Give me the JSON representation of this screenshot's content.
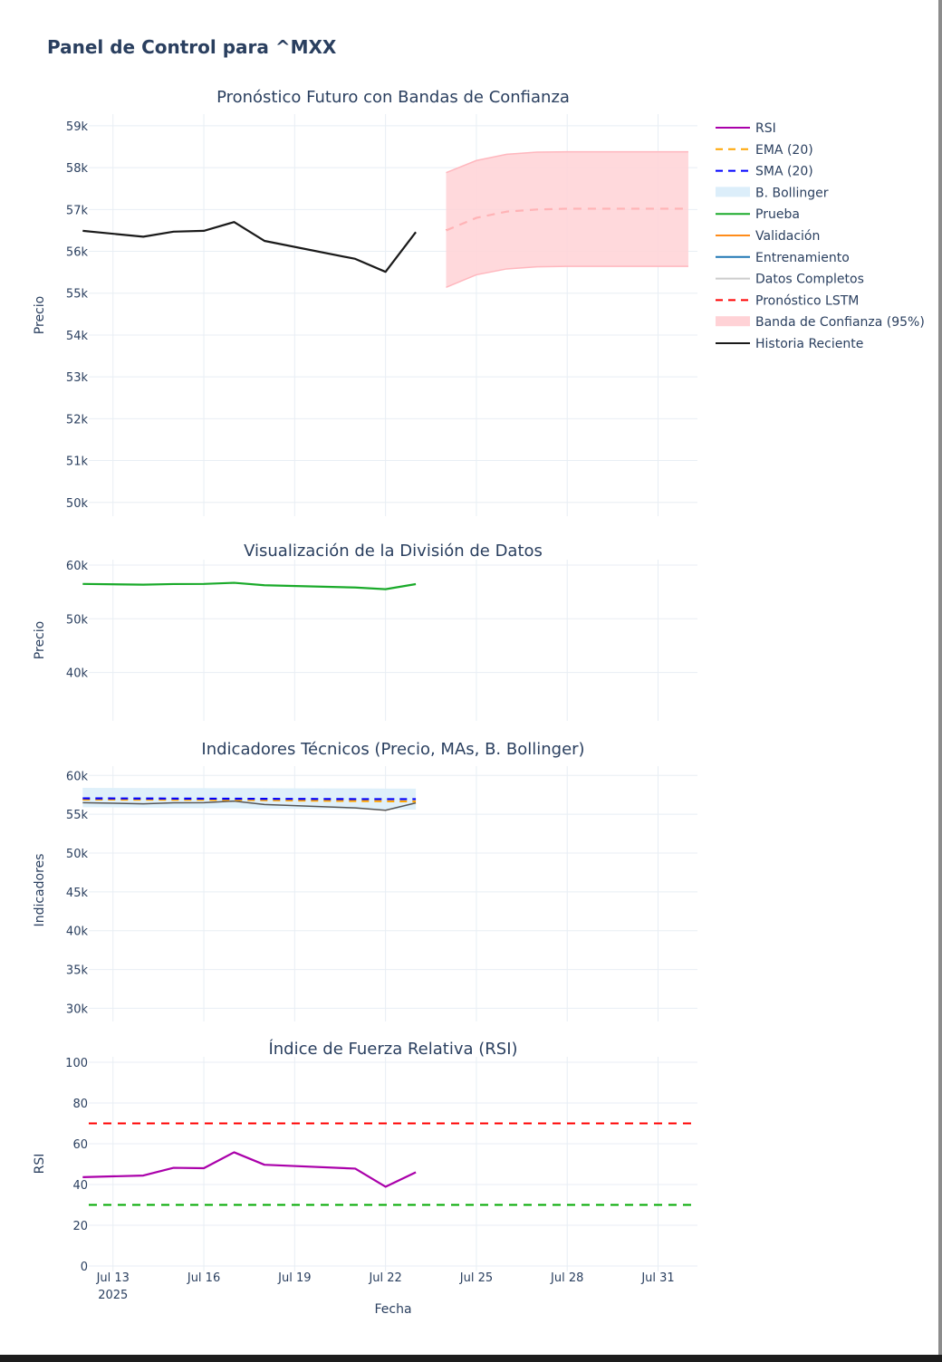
{
  "page": {
    "title": "Panel de Control para ^MXX"
  },
  "colors": {
    "grid": "#e8eef4",
    "text": "#2a3f5f",
    "history": "#1a1a1a",
    "forecast": "#ff0000",
    "band": "#ffd2d6",
    "band_edge": "#ffb7be",
    "test": "#1aaa2a",
    "validation": "#ff8c1a",
    "training": "#1f77b4",
    "full": "#cccccc",
    "ema": "#ffa500",
    "sma": "#0000ff",
    "bollinger": "#dceefa",
    "rsi": "#aa00aa",
    "overbought": "#ff0000",
    "oversold": "#00aa00"
  },
  "x_axis": {
    "title": "Fecha",
    "ticks": [
      {
        "day": 13,
        "label": "Jul 13",
        "sublabel": "2025"
      },
      {
        "day": 16,
        "label": "Jul 16"
      },
      {
        "day": 19,
        "label": "Jul 19"
      },
      {
        "day": 22,
        "label": "Jul 22"
      },
      {
        "day": 25,
        "label": "Jul 25"
      },
      {
        "day": 28,
        "label": "Jul 28"
      },
      {
        "day": 31,
        "label": "Jul 31"
      }
    ],
    "range": [
      12.2,
      32.3
    ]
  },
  "legend": [
    {
      "label": "RSI",
      "kind": "line",
      "color": "#aa00aa"
    },
    {
      "label": "EMA (20)",
      "kind": "dash",
      "color": "#ffa500"
    },
    {
      "label": "SMA (20)",
      "kind": "dash",
      "color": "#0000ff"
    },
    {
      "label": "B. Bollinger",
      "kind": "fill",
      "color": "#dceefa"
    },
    {
      "label": "Prueba",
      "kind": "line",
      "color": "#1aaa2a"
    },
    {
      "label": "Validación",
      "kind": "line",
      "color": "#ff8c1a"
    },
    {
      "label": "Entrenamiento",
      "kind": "line",
      "color": "#1f77b4"
    },
    {
      "label": "Datos Completos",
      "kind": "line",
      "color": "#cccccc"
    },
    {
      "label": "Pronóstico LSTM",
      "kind": "dash",
      "color": "#ff0000"
    },
    {
      "label": "Banda de Confianza (95%)",
      "kind": "fill",
      "color": "#ffd2d6"
    },
    {
      "label": "Historia Reciente",
      "kind": "line",
      "color": "#1a1a1a"
    }
  ],
  "chart_data": [
    {
      "type": "line",
      "title": "Pronóstico Futuro con Bandas de Confianza",
      "xlabel": "",
      "ylabel": "Precio",
      "ylim": [
        49800,
        59150
      ],
      "y_ticks": [
        {
          "value": 50000,
          "label": "50k"
        },
        {
          "value": 51000,
          "label": "51k"
        },
        {
          "value": 52000,
          "label": "52k"
        },
        {
          "value": 53000,
          "label": "53k"
        },
        {
          "value": 54000,
          "label": "54k"
        },
        {
          "value": 55000,
          "label": "55k"
        },
        {
          "value": 56000,
          "label": "56k"
        },
        {
          "value": 57000,
          "label": "57k"
        },
        {
          "value": 58000,
          "label": "58k"
        },
        {
          "value": 59000,
          "label": "59k"
        }
      ],
      "series": [
        {
          "name": "Historia Reciente",
          "style": "line",
          "x": [
            "2025-07-12",
            "2025-07-14",
            "2025-07-15",
            "2025-07-16",
            "2025-07-17",
            "2025-07-18",
            "2025-07-21",
            "2025-07-22",
            "2025-07-23"
          ],
          "y": [
            56490,
            56350,
            56470,
            56490,
            56700,
            56250,
            55820,
            55510,
            56460
          ]
        },
        {
          "name": "Pronóstico LSTM",
          "style": "dash",
          "x": [
            "2025-07-24",
            "2025-07-25",
            "2025-07-26",
            "2025-07-27",
            "2025-07-28",
            "2025-07-29",
            "2025-07-30",
            "2025-07-31",
            "2025-08-01"
          ],
          "y": [
            56500,
            56800,
            56950,
            57000,
            57020,
            57020,
            57020,
            57020,
            57020
          ]
        },
        {
          "name": "Banda de Confianza (95%)",
          "style": "band",
          "x": [
            "2025-07-24",
            "2025-07-25",
            "2025-07-26",
            "2025-07-27",
            "2025-07-28",
            "2025-07-29",
            "2025-07-30",
            "2025-07-31",
            "2025-08-01"
          ],
          "upper": [
            57880,
            58170,
            58320,
            58370,
            58380,
            58380,
            58380,
            58380,
            58380
          ],
          "lower": [
            55140,
            55440,
            55580,
            55630,
            55640,
            55640,
            55640,
            55640,
            55640
          ]
        }
      ]
    },
    {
      "type": "line",
      "title": "Visualización de la División de Datos",
      "xlabel": "",
      "ylabel": "Precio",
      "ylim": [
        32000,
        60000
      ],
      "y_ticks": [
        {
          "value": 40000,
          "label": "40k"
        },
        {
          "value": 50000,
          "label": "50k"
        },
        {
          "value": 60000,
          "label": "60k"
        }
      ],
      "series": [
        {
          "name": "Prueba",
          "style": "line",
          "x": [
            "2025-07-12",
            "2025-07-14",
            "2025-07-15",
            "2025-07-16",
            "2025-07-17",
            "2025-07-18",
            "2025-07-21",
            "2025-07-22",
            "2025-07-23"
          ],
          "y": [
            56490,
            56350,
            56470,
            56490,
            56700,
            56250,
            55820,
            55510,
            56460
          ]
        }
      ]
    },
    {
      "type": "line",
      "title": "Indicadores Técnicos (Precio, MAs, B. Bollinger)",
      "xlabel": "",
      "ylabel": "Indicadores",
      "ylim": [
        29000,
        60500
      ],
      "y_ticks": [
        {
          "value": 30000,
          "label": "30k"
        },
        {
          "value": 35000,
          "label": "35k"
        },
        {
          "value": 40000,
          "label": "40k"
        },
        {
          "value": 45000,
          "label": "45k"
        },
        {
          "value": 50000,
          "label": "50k"
        },
        {
          "value": 55000,
          "label": "55k"
        },
        {
          "value": 60000,
          "label": "60k"
        }
      ],
      "series": [
        {
          "name": "B. Bollinger",
          "style": "band",
          "x": [
            "2025-07-12",
            "2025-07-23"
          ],
          "upper": [
            58400,
            58300
          ],
          "lower": [
            55900,
            55600
          ]
        },
        {
          "name": "Datos Completos",
          "style": "line",
          "x": [
            "2025-07-12",
            "2025-07-14",
            "2025-07-15",
            "2025-07-16",
            "2025-07-17",
            "2025-07-18",
            "2025-07-21",
            "2025-07-22",
            "2025-07-23"
          ],
          "y": [
            56490,
            56350,
            56470,
            56490,
            56700,
            56250,
            55820,
            55510,
            56460
          ]
        },
        {
          "name": "EMA (20)",
          "style": "dash",
          "x": [
            "2025-07-12",
            "2025-07-17",
            "2025-07-21",
            "2025-07-23"
          ],
          "y": [
            56900,
            56850,
            56700,
            56650
          ]
        },
        {
          "name": "SMA (20)",
          "style": "dash",
          "x": [
            "2025-07-12",
            "2025-07-17",
            "2025-07-21",
            "2025-07-23"
          ],
          "y": [
            57050,
            57000,
            56950,
            56950
          ]
        }
      ]
    },
    {
      "type": "line",
      "title": "Índice de Fuerza Relativa (RSI)",
      "xlabel": "Fecha",
      "ylabel": "RSI",
      "ylim": [
        0,
        100
      ],
      "y_ticks": [
        {
          "value": 0,
          "label": "0"
        },
        {
          "value": 20,
          "label": "20"
        },
        {
          "value": 40,
          "label": "40"
        },
        {
          "value": 60,
          "label": "60"
        },
        {
          "value": 80,
          "label": "80"
        },
        {
          "value": 100,
          "label": "100"
        }
      ],
      "reference_lines": [
        {
          "value": 70,
          "color": "#ff0000"
        },
        {
          "value": 30,
          "color": "#00aa00"
        }
      ],
      "series": [
        {
          "name": "RSI",
          "style": "line",
          "x": [
            "2025-07-12",
            "2025-07-14",
            "2025-07-15",
            "2025-07-16",
            "2025-07-17",
            "2025-07-18",
            "2025-07-21",
            "2025-07-22",
            "2025-07-23"
          ],
          "y": [
            43.6,
            44.4,
            48.2,
            48.0,
            55.8,
            49.7,
            47.8,
            38.9,
            46.0
          ]
        }
      ]
    }
  ]
}
